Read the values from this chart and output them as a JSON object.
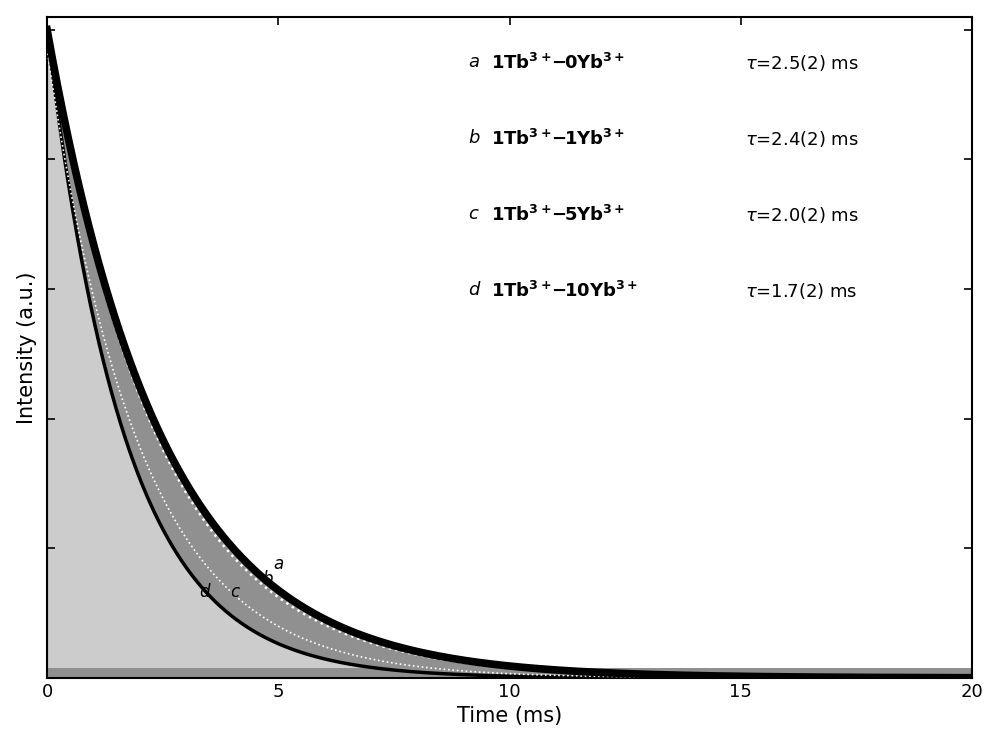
{
  "title": "",
  "xlabel": "Time (ms)",
  "ylabel": "Intensity (a.u.)",
  "xlim": [
    0,
    20
  ],
  "tau_a": 2.5,
  "tau_b": 2.4,
  "tau_c": 2.0,
  "tau_d": 1.7,
  "background_color": "#ffffff",
  "gray_band_color": "#999999",
  "black_line_color": "#000000",
  "white_line_color": "#ffffff",
  "xticks": [
    0,
    5,
    10,
    15,
    20
  ],
  "legend_entries": [
    [
      "a",
      "1Tb",
      "3+",
      "-0Yb",
      "3+",
      "2.5"
    ],
    [
      "b",
      "1Tb",
      "3+",
      "-1Yb",
      "3+",
      "2.4"
    ],
    [
      "c",
      "1Tb",
      "3+",
      "-5Yb",
      "3+",
      "2.0"
    ],
    [
      "d",
      "1Tb",
      "3+",
      "-10Yb",
      "3+",
      "1.7"
    ]
  ]
}
